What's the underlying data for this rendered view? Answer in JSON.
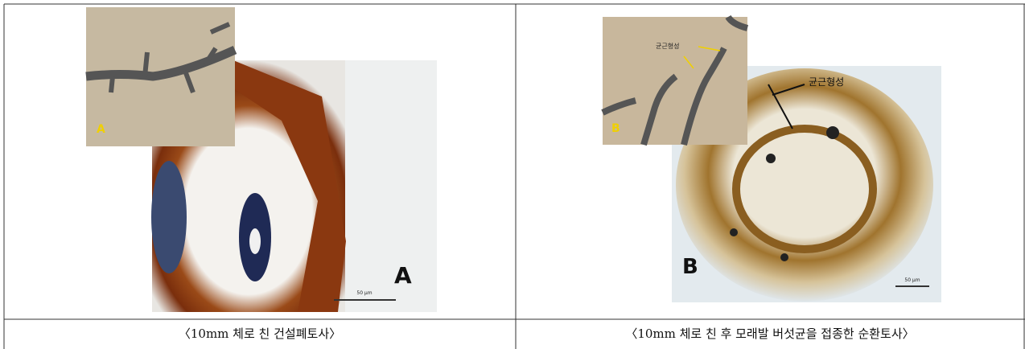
{
  "figure": {
    "panels": [
      {
        "inset_label": "A",
        "image_label": "A",
        "scale_label": "50 μm",
        "caption": "〈10mm 체로 친 건설폐토사〉"
      },
      {
        "inset_label": "B",
        "inset_annotation": "균근형성",
        "image_annotation": "균근형성",
        "image_label": "B",
        "scale_label": "50 μm",
        "caption": "〈10mm 체로 친 후 모래발 버섯균을 접종한 순환토사〉"
      }
    ]
  }
}
